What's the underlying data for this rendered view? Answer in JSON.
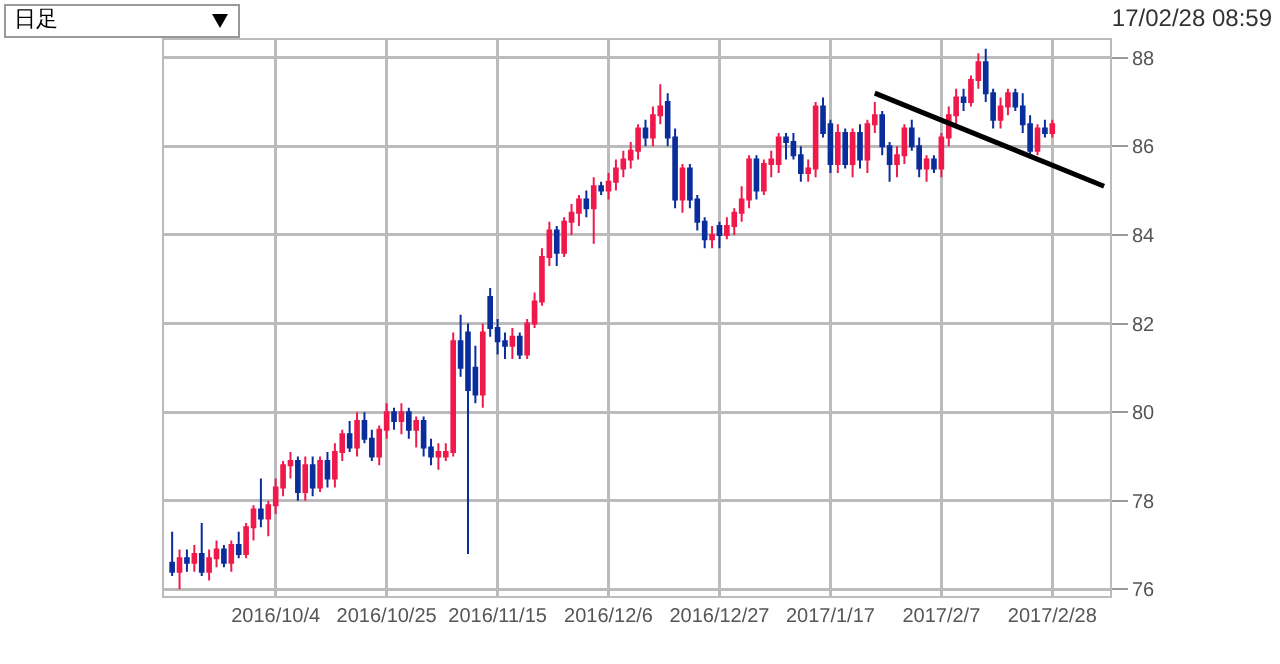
{
  "chart_data": {
    "type": "candlestick",
    "annotations": [
      "日足",
      "17/02/28 08:59"
    ],
    "categories": [
      null,
      null,
      null,
      null,
      null,
      null,
      null,
      null,
      null,
      null,
      null,
      null,
      null,
      null,
      "2016/10/4",
      null,
      null,
      null,
      null,
      null,
      null,
      null,
      null,
      null,
      null,
      null,
      null,
      null,
      null,
      "2016/10/25",
      null,
      null,
      null,
      null,
      null,
      null,
      null,
      null,
      null,
      null,
      null,
      null,
      null,
      null,
      "2016/11/15",
      null,
      null,
      null,
      null,
      null,
      null,
      null,
      null,
      null,
      null,
      null,
      null,
      null,
      null,
      "2016/12/6",
      null,
      null,
      null,
      null,
      null,
      null,
      null,
      null,
      null,
      null,
      null,
      null,
      null,
      null,
      "2016/12/27",
      null,
      null,
      null,
      null,
      null,
      null,
      null,
      null,
      null,
      null,
      null,
      null,
      null,
      null,
      "2017/1/17",
      null,
      null,
      null,
      null,
      null,
      null,
      null,
      null,
      null,
      null,
      null,
      null,
      null,
      null,
      "2017/2/7",
      null,
      null,
      null,
      null,
      null,
      null,
      null,
      null,
      null,
      null,
      null,
      null,
      null,
      null,
      "2017/2/28",
      null,
      null,
      null,
      null,
      null,
      null,
      null
    ],
    "colors": [
      "#0a2d9c",
      "#f0194b",
      "#0a2d9c",
      "#f0194b",
      "#0a2d9c",
      "#f0194b",
      "#f0194b",
      "#0a2d9c",
      "#f0194b",
      "#0a2d9c",
      "#f0194b",
      "#f0194b",
      "#0a2d9c",
      "#f0194b",
      "#f0194b",
      "#f0194b",
      "#f0194b",
      "#0a2d9c",
      "#f0194b",
      "#0a2d9c",
      "#f0194b",
      "#0a2d9c",
      "#f0194b",
      "#f0194b",
      "#0a2d9c",
      "#f0194b",
      "#0a2d9c",
      "#0a2d9c",
      "#f0194b",
      "#f0194b",
      "#0a2d9c",
      "#f0194b",
      "#0a2d9c",
      "#f0194b",
      "#0a2d9c",
      "#0a2d9c",
      "#f0194b",
      "#f0194b",
      "#f0194b",
      "#0a2d9c",
      "#0a2d9c",
      "#0a2d9c",
      "#f0194b",
      "#0a2d9c",
      "#0a2d9c",
      "#0a2d9c",
      "#f0194b",
      "#0a2d9c",
      "#f0194b",
      "#f0194b",
      "#f0194b",
      "#f0194b",
      "#0a2d9c",
      "#f0194b",
      "#f0194b",
      "#f0194b",
      "#0a2d9c",
      "#f0194b",
      "#0a2d9c",
      "#f0194b",
      "#f0194b",
      "#f0194b",
      "#f0194b",
      "#f0194b",
      "#0a2d9c",
      "#f0194b",
      "#f0194b",
      "#0a2d9c",
      "#0a2d9c",
      "#f0194b",
      "#0a2d9c",
      "#0a2d9c",
      "#0a2d9c",
      "#f0194b",
      "#0a2d9c",
      "#f0194b",
      "#f0194b",
      "#f0194b",
      "#f0194b",
      "#0a2d9c",
      "#f0194b",
      "#f0194b",
      "#f0194b",
      "#0a2d9c",
      "#0a2d9c",
      "#0a2d9c",
      "#f0194b",
      "#f0194b",
      "#0a2d9c",
      "#0a2d9c",
      "#f0194b",
      "#0a2d9c",
      "#f0194b",
      "#0a2d9c",
      "#f0194b",
      "#f0194b",
      "#0a2d9c",
      "#0a2d9c",
      "#f0194b",
      "#f0194b",
      "#0a2d9c",
      "#0a2d9c",
      "#f0194b",
      "#0a2d9c",
      "#f0194b",
      "#f0194b",
      "#f0194b",
      "#0a2d9c",
      "#f0194b",
      "#f0194b",
      "#0a2d9c",
      "#0a2d9c",
      "#f0194b",
      "#f0194b",
      "#0a2d9c",
      "#0a2d9c",
      "#0a2d9c",
      "#f0194b",
      "#0a2d9c",
      "#f0194b",
      null,
      null,
      null,
      null,
      null,
      null,
      null
    ],
    "ohlc": [
      [
        76.6,
        77.3,
        76.3,
        76.4
      ],
      [
        76.4,
        76.9,
        76.0,
        76.7
      ],
      [
        76.7,
        76.9,
        76.4,
        76.6
      ],
      [
        76.6,
        77.0,
        76.4,
        76.8
      ],
      [
        76.8,
        77.5,
        76.3,
        76.4
      ],
      [
        76.4,
        76.9,
        76.2,
        76.7
      ],
      [
        76.7,
        77.1,
        76.5,
        76.9
      ],
      [
        76.9,
        77.0,
        76.5,
        76.6
      ],
      [
        76.6,
        77.1,
        76.4,
        77.0
      ],
      [
        77.0,
        77.3,
        76.7,
        76.8
      ],
      [
        76.8,
        77.5,
        76.7,
        77.4
      ],
      [
        77.4,
        77.9,
        77.1,
        77.8
      ],
      [
        77.8,
        78.5,
        77.4,
        77.6
      ],
      [
        77.6,
        78.0,
        77.2,
        77.9
      ],
      [
        77.9,
        78.5,
        77.7,
        78.3
      ],
      [
        78.3,
        78.9,
        78.1,
        78.8
      ],
      [
        78.8,
        79.1,
        78.5,
        78.9
      ],
      [
        78.9,
        79.0,
        78.0,
        78.2
      ],
      [
        78.2,
        79.0,
        78.0,
        78.8
      ],
      [
        78.8,
        79.0,
        78.1,
        78.3
      ],
      [
        78.3,
        79.0,
        78.2,
        78.9
      ],
      [
        78.9,
        79.1,
        78.3,
        78.5
      ],
      [
        78.5,
        79.3,
        78.3,
        79.1
      ],
      [
        79.1,
        79.6,
        78.9,
        79.5
      ],
      [
        79.5,
        79.8,
        79.1,
        79.2
      ],
      [
        79.2,
        80.0,
        79.0,
        79.8
      ],
      [
        79.8,
        80.0,
        79.3,
        79.4
      ],
      [
        79.4,
        79.6,
        78.9,
        79.0
      ],
      [
        79.0,
        79.7,
        78.8,
        79.6
      ],
      [
        79.6,
        80.2,
        79.4,
        80.0
      ],
      [
        80.0,
        80.1,
        79.6,
        79.8
      ],
      [
        79.8,
        80.2,
        79.5,
        80.0
      ],
      [
        80.0,
        80.1,
        79.4,
        79.6
      ],
      [
        79.6,
        79.9,
        79.2,
        79.8
      ],
      [
        79.8,
        79.9,
        79.0,
        79.2
      ],
      [
        79.2,
        79.4,
        78.8,
        79.0
      ],
      [
        79.0,
        79.3,
        78.7,
        79.1
      ],
      [
        79.0,
        79.3,
        78.9,
        79.1
      ],
      [
        79.1,
        81.8,
        79.0,
        81.6
      ],
      [
        81.6,
        82.2,
        80.8,
        81.0
      ],
      [
        81.8,
        82.0,
        76.8,
        80.5
      ],
      [
        81.0,
        81.5,
        80.2,
        80.4
      ],
      [
        80.4,
        82.0,
        80.1,
        81.8
      ],
      [
        82.6,
        82.8,
        81.7,
        81.9
      ],
      [
        81.9,
        82.1,
        81.3,
        81.6
      ],
      [
        81.6,
        81.8,
        81.2,
        81.5
      ],
      [
        81.5,
        81.9,
        81.2,
        81.7
      ],
      [
        81.7,
        81.8,
        81.2,
        81.3
      ],
      [
        81.3,
        82.1,
        81.2,
        82.0
      ],
      [
        82.0,
        82.7,
        81.9,
        82.5
      ],
      [
        82.5,
        83.7,
        82.4,
        83.5
      ],
      [
        83.5,
        84.3,
        83.3,
        84.1
      ],
      [
        84.1,
        84.2,
        83.3,
        83.6
      ],
      [
        83.6,
        84.4,
        83.5,
        84.3
      ],
      [
        84.3,
        84.7,
        84.0,
        84.5
      ],
      [
        84.5,
        84.9,
        84.2,
        84.8
      ],
      [
        84.8,
        85.0,
        84.4,
        84.6
      ],
      [
        84.6,
        85.3,
        83.8,
        85.1
      ],
      [
        85.1,
        85.2,
        84.9,
        85.0
      ],
      [
        85.0,
        85.4,
        84.8,
        85.2
      ],
      [
        85.2,
        85.7,
        85.0,
        85.5
      ],
      [
        85.5,
        85.9,
        85.3,
        85.7
      ],
      [
        85.7,
        86.1,
        85.5,
        85.9
      ],
      [
        85.9,
        86.5,
        85.7,
        86.4
      ],
      [
        86.4,
        86.6,
        86.0,
        86.2
      ],
      [
        86.2,
        86.9,
        86.0,
        86.7
      ],
      [
        86.7,
        87.4,
        86.5,
        86.9
      ],
      [
        87.0,
        87.2,
        86.0,
        86.2
      ],
      [
        86.2,
        86.4,
        84.6,
        84.8
      ],
      [
        84.8,
        85.6,
        84.5,
        85.5
      ],
      [
        85.5,
        85.6,
        84.6,
        84.8
      ],
      [
        84.8,
        84.9,
        84.1,
        84.3
      ],
      [
        84.3,
        84.4,
        83.7,
        83.9
      ],
      [
        83.9,
        84.2,
        83.7,
        84.0
      ],
      [
        84.2,
        84.3,
        83.7,
        84.0
      ],
      [
        84.0,
        84.4,
        83.9,
        84.2
      ],
      [
        84.2,
        84.6,
        84.0,
        84.5
      ],
      [
        84.5,
        85.1,
        84.3,
        84.8
      ],
      [
        84.8,
        85.8,
        84.6,
        85.7
      ],
      [
        85.7,
        85.8,
        84.8,
        85.0
      ],
      [
        85.0,
        85.7,
        84.9,
        85.6
      ],
      [
        85.6,
        85.9,
        85.3,
        85.7
      ],
      [
        85.6,
        86.3,
        85.4,
        86.2
      ],
      [
        86.2,
        86.3,
        85.7,
        86.1
      ],
      [
        86.1,
        86.3,
        85.7,
        85.8
      ],
      [
        85.8,
        86.0,
        85.2,
        85.4
      ],
      [
        85.4,
        85.7,
        85.2,
        85.5
      ],
      [
        85.5,
        87.0,
        85.3,
        86.9
      ],
      [
        86.9,
        87.1,
        86.2,
        86.3
      ],
      [
        86.5,
        86.6,
        85.4,
        85.6
      ],
      [
        85.6,
        86.5,
        85.4,
        86.3
      ],
      [
        86.3,
        86.4,
        85.5,
        85.6
      ],
      [
        85.6,
        86.4,
        85.3,
        86.3
      ],
      [
        86.3,
        86.5,
        85.5,
        85.7
      ],
      [
        85.7,
        86.6,
        85.4,
        86.5
      ],
      [
        86.5,
        87.0,
        86.3,
        86.7
      ],
      [
        86.7,
        86.8,
        85.8,
        86.0
      ],
      [
        86.0,
        86.1,
        85.2,
        85.6
      ],
      [
        85.6,
        86.0,
        85.3,
        85.8
      ],
      [
        85.8,
        86.5,
        85.6,
        86.4
      ],
      [
        86.4,
        86.6,
        85.9,
        86.0
      ],
      [
        86.0,
        86.2,
        85.3,
        85.5
      ],
      [
        85.5,
        85.8,
        85.2,
        85.7
      ],
      [
        85.7,
        85.8,
        85.4,
        85.5
      ],
      [
        85.5,
        86.3,
        85.3,
        86.2
      ],
      [
        86.2,
        86.9,
        86.0,
        86.7
      ],
      [
        86.7,
        87.3,
        86.5,
        87.1
      ],
      [
        87.1,
        87.3,
        86.8,
        87.0
      ],
      [
        87.0,
        87.6,
        86.9,
        87.5
      ],
      [
        87.5,
        88.1,
        87.3,
        87.9
      ],
      [
        87.9,
        88.2,
        87.0,
        87.2
      ],
      [
        87.2,
        87.3,
        86.4,
        86.6
      ],
      [
        86.6,
        87.1,
        86.4,
        86.9
      ],
      [
        86.9,
        87.3,
        86.7,
        87.2
      ],
      [
        87.2,
        87.3,
        86.8,
        86.9
      ],
      [
        86.9,
        87.2,
        86.3,
        86.5
      ],
      [
        86.5,
        86.7,
        85.8,
        85.9
      ],
      [
        85.9,
        86.5,
        85.8,
        86.4
      ],
      [
        86.4,
        86.6,
        86.2,
        86.3
      ],
      [
        86.3,
        86.6,
        86.2,
        86.5
      ],
      null,
      null,
      null,
      null,
      null,
      null,
      null
    ],
    "series": [
      {
        "type": "line",
        "color": "#000000",
        "values": [
          null,
          null,
          null,
          null,
          null,
          null,
          null,
          null,
          null,
          null,
          null,
          null,
          null,
          null,
          null,
          null,
          null,
          null,
          null,
          null,
          null,
          null,
          null,
          null,
          null,
          null,
          null,
          null,
          null,
          null,
          null,
          null,
          null,
          null,
          null,
          null,
          null,
          null,
          null,
          null,
          null,
          null,
          null,
          null,
          null,
          null,
          null,
          null,
          null,
          null,
          null,
          null,
          null,
          null,
          null,
          null,
          null,
          null,
          null,
          null,
          null,
          null,
          null,
          null,
          null,
          null,
          null,
          null,
          null,
          null,
          null,
          null,
          null,
          null,
          null,
          null,
          null,
          null,
          null,
          null,
          null,
          null,
          null,
          null,
          null,
          null,
          null,
          null,
          null,
          null,
          null,
          null,
          null,
          null,
          null,
          87.2,
          null,
          null,
          null,
          null,
          null,
          null,
          null,
          null,
          null,
          null,
          null,
          null,
          null,
          null,
          null,
          null,
          null,
          null,
          null,
          null,
          null,
          null,
          null,
          null,
          null,
          null,
          null,
          null,
          null,
          null,
          85.1
        ]
      }
    ],
    "ylim": [
      75.85,
      88.4
    ],
    "yticks": [
      76,
      78,
      80,
      82,
      84,
      86,
      88
    ],
    "grid": true
  }
}
